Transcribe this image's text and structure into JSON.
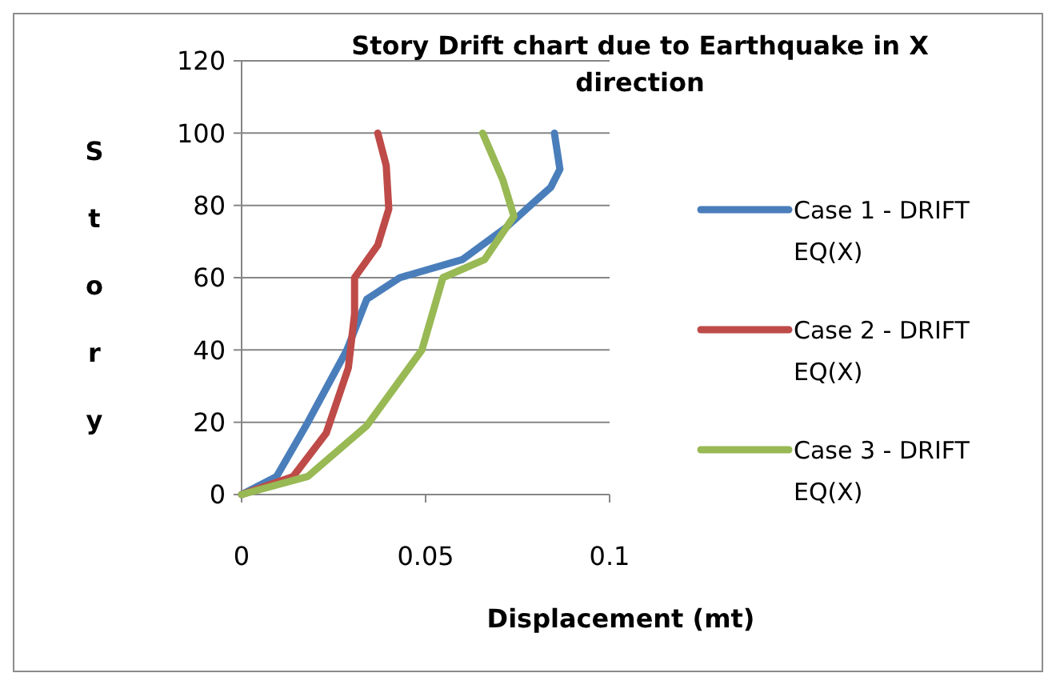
{
  "chart_data": {
    "type": "line",
    "title": "Story Drift chart due to Earthquake in X direction",
    "xlabel": "Displacement (mt)",
    "ylabel": "Story",
    "xlim": [
      0,
      0.1
    ],
    "xticks": [
      0,
      0.05,
      0.1
    ],
    "ylim": [
      0,
      120
    ],
    "yticks": [
      0,
      20,
      40,
      60,
      80,
      100,
      120
    ],
    "grid": "y",
    "legend": "right",
    "marker": "none",
    "line_style": "solid",
    "series": [
      {
        "name": "Case 1 - DRIFT EQ(X)",
        "color": "#4a7ebb",
        "x": [
          0,
          0.0095,
          0.018,
          0.0286,
          0.034,
          0.043,
          0.06,
          0.072,
          0.0785,
          0.084,
          0.0865,
          0.085
        ],
        "values": [
          0,
          5,
          20,
          40,
          54,
          60,
          65,
          74,
          80,
          85,
          90,
          100
        ]
      },
      {
        "name": "Case 2 - DRIFT EQ(X)",
        "color": "#be4b48",
        "x": [
          0,
          0.014,
          0.023,
          0.029,
          0.0307,
          0.0307,
          0.037,
          0.04,
          0.0393,
          0.037
        ],
        "values": [
          0,
          5,
          17,
          35,
          50,
          60,
          69,
          79,
          91,
          100
        ]
      },
      {
        "name": "Case 3 - DRIFT EQ(X)",
        "color": "#98b954",
        "x": [
          0,
          0.018,
          0.034,
          0.049,
          0.0547,
          0.066,
          0.074,
          0.071,
          0.0655
        ],
        "values": [
          0,
          5,
          19,
          40,
          60,
          65,
          77,
          87,
          100
        ]
      }
    ]
  }
}
